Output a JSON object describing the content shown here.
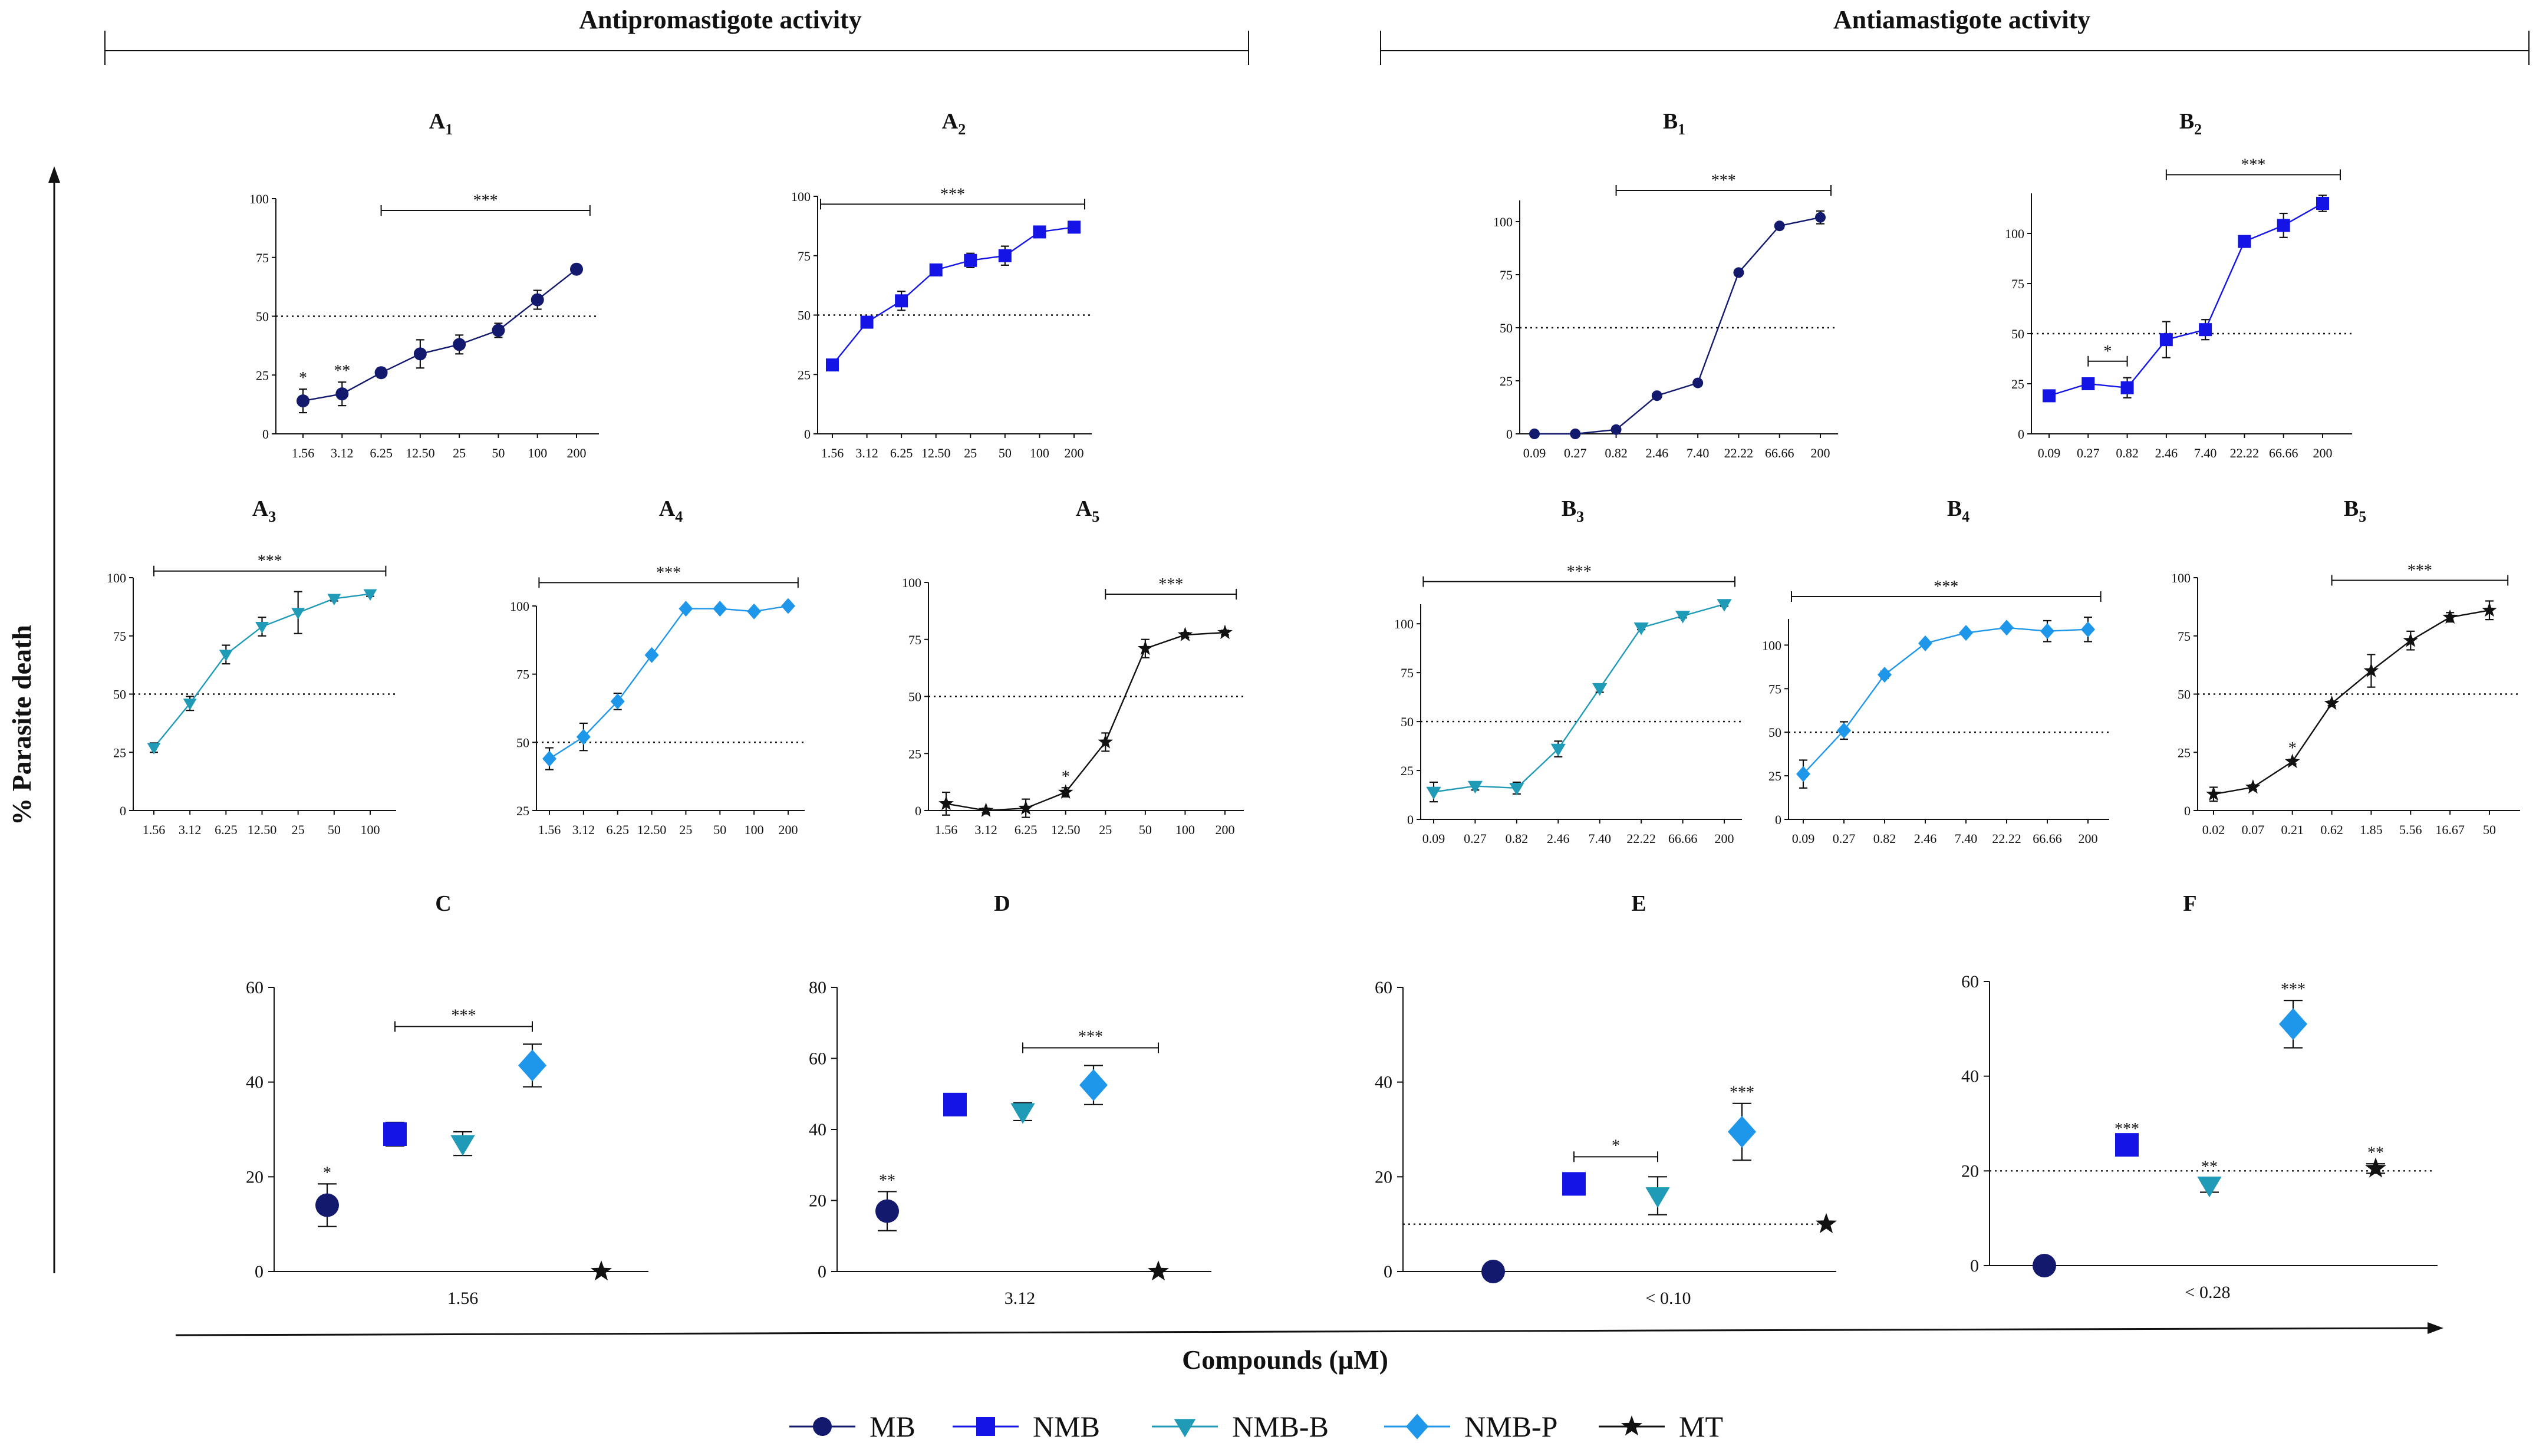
{
  "figure": {
    "sections": [
      {
        "key": "pro",
        "label": "Antipromastigote activity"
      },
      {
        "key": "ama",
        "label": "Antiamastigote activity"
      }
    ],
    "y_axis_label": "% Parasite death",
    "x_axis_label": "Compounds (µM)",
    "legend": [
      {
        "name": "MB",
        "marker": "circle",
        "color": "#131a6e"
      },
      {
        "name": "NMB",
        "marker": "square",
        "color": "#1414e6"
      },
      {
        "name": "NMB-B",
        "marker": "triangle-down",
        "color": "#1f9bb8"
      },
      {
        "name": "NMB-P",
        "marker": "diamond",
        "color": "#1e96ea"
      },
      {
        "name": "MT",
        "marker": "star",
        "color": "#111111"
      }
    ]
  },
  "chart_data": [
    {
      "id": "A1",
      "type": "line",
      "title": "A",
      "subscript": "1",
      "compound": "MB",
      "color": "#131a6e",
      "marker": "circle",
      "categories": [
        "1.56",
        "3.12",
        "6.25",
        "12.50",
        "25",
        "50",
        "100",
        "200"
      ],
      "values": [
        14,
        17,
        26,
        34,
        38,
        44,
        57,
        70
      ],
      "errors": [
        5,
        5,
        2,
        6,
        4,
        3,
        4,
        1
      ],
      "ylim": [
        0,
        100
      ],
      "yticks": [
        0,
        25,
        50,
        75,
        100
      ],
      "reference_line": 50,
      "annotations": [
        {
          "text": "*",
          "at": 0
        },
        {
          "text": "**",
          "at": 1
        },
        {
          "text": "***",
          "from": 2,
          "to": 7
        }
      ]
    },
    {
      "id": "A2",
      "type": "line",
      "title": "A",
      "subscript": "2",
      "compound": "NMB",
      "color": "#1414e6",
      "marker": "square",
      "categories": [
        "1.56",
        "3.12",
        "6.25",
        "12.50",
        "25",
        "50",
        "100",
        "200"
      ],
      "values": [
        29,
        47,
        56,
        69,
        73,
        75,
        85,
        87
      ],
      "errors": [
        2,
        2,
        4,
        2,
        3,
        4,
        1,
        1
      ],
      "ylim": [
        0,
        100
      ],
      "yticks": [
        0,
        25,
        50,
        75,
        100
      ],
      "reference_line": 50,
      "annotations": [
        {
          "text": "***",
          "from": 0,
          "to": 7
        }
      ]
    },
    {
      "id": "A3",
      "type": "line",
      "title": "A",
      "subscript": "3",
      "compound": "NMB-B",
      "color": "#1f9bb8",
      "marker": "triangle-down",
      "categories": [
        "1.56",
        "3.12",
        "6.25",
        "12.50",
        "25",
        "50",
        "100"
      ],
      "values": [
        27,
        46,
        67,
        79,
        85,
        91,
        93
      ],
      "errors": [
        2,
        3,
        4,
        4,
        9,
        1,
        1
      ],
      "ylim": [
        0,
        100
      ],
      "yticks": [
        0,
        25,
        50,
        75,
        100
      ],
      "reference_line": 50,
      "annotations": [
        {
          "text": "***",
          "from": 0,
          "to": 7
        }
      ]
    },
    {
      "id": "A4",
      "type": "line",
      "title": "A",
      "subscript": "4",
      "compound": "NMB-P",
      "color": "#1e96ea",
      "marker": "diamond",
      "categories": [
        "1.56",
        "3.12",
        "6.25",
        "12.50",
        "25",
        "50",
        "100",
        "200"
      ],
      "values": [
        44,
        52,
        65,
        82,
        99,
        99,
        98,
        100
      ],
      "errors": [
        4,
        5,
        3,
        1,
        1,
        1,
        1,
        1
      ],
      "ylim": [
        25,
        100
      ],
      "yticks": [
        25,
        50,
        75,
        100
      ],
      "reference_line": 50,
      "annotations": [
        {
          "text": "***",
          "from": 0,
          "to": 7
        }
      ]
    },
    {
      "id": "A5",
      "type": "line",
      "title": "A",
      "subscript": "5",
      "compound": "MT",
      "color": "#111111",
      "marker": "star",
      "categories": [
        "1.56",
        "3.12",
        "6.25",
        "12.50",
        "25",
        "50",
        "100",
        "200"
      ],
      "values": [
        3,
        0,
        1,
        8,
        30,
        71,
        77,
        78
      ],
      "errors": [
        5,
        1,
        4,
        2,
        4,
        4,
        1,
        1
      ],
      "ylim": [
        0,
        100
      ],
      "yticks": [
        0,
        25,
        50,
        75,
        100
      ],
      "reference_line": 50,
      "annotations": [
        {
          "text": "*",
          "at": 3
        },
        {
          "text": "***",
          "from": 4,
          "to": 7
        }
      ]
    },
    {
      "id": "B1",
      "type": "line",
      "title": "B",
      "subscript": "1",
      "compound": "MB",
      "color": "#131a6e",
      "marker": "circle",
      "categories": [
        "0.09",
        "0.27",
        "0.82",
        "2.46",
        "7.40",
        "22.22",
        "66.66",
        "200"
      ],
      "values": [
        0,
        0,
        2,
        18,
        24,
        76,
        98,
        102
      ],
      "errors": [
        0,
        0,
        1,
        1,
        1,
        1,
        1,
        3
      ],
      "ylim": [
        0,
        110
      ],
      "yticks": [
        0,
        25,
        50,
        75,
        100
      ],
      "reference_line": 50,
      "annotations": [
        {
          "text": "***",
          "from": 2,
          "to": 7
        }
      ]
    },
    {
      "id": "B2",
      "type": "line",
      "title": "B",
      "subscript": "2",
      "compound": "NMB",
      "color": "#1414e6",
      "marker": "square",
      "categories": [
        "0.09",
        "0.27",
        "0.82",
        "2.46",
        "7.40",
        "22.22",
        "66.66",
        "200"
      ],
      "values": [
        19,
        25,
        23,
        47,
        52,
        96,
        104,
        115
      ],
      "errors": [
        1,
        1,
        5,
        9,
        5,
        1,
        6,
        4
      ],
      "ylim": [
        0,
        120
      ],
      "yticks": [
        0,
        25,
        50,
        75,
        100
      ],
      "reference_line": 50,
      "annotations": [
        {
          "text": "*",
          "from": 1,
          "to": 2
        },
        {
          "text": "***",
          "from": 3,
          "to": 7
        }
      ]
    },
    {
      "id": "B3",
      "type": "line",
      "title": "B",
      "subscript": "3",
      "compound": "NMB-B",
      "color": "#1f9bb8",
      "marker": "triangle-down",
      "categories": [
        "0.09",
        "0.27",
        "0.82",
        "2.46",
        "7.40",
        "22.22",
        "66.66",
        "200"
      ],
      "values": [
        14,
        17,
        16,
        36,
        67,
        98,
        104,
        110
      ],
      "errors": [
        5,
        2,
        3,
        4,
        2,
        1,
        1,
        1
      ],
      "ylim": [
        0,
        110
      ],
      "yticks": [
        0,
        25,
        50,
        75,
        100
      ],
      "reference_line": 50,
      "annotations": [
        {
          "text": "***",
          "from": 0,
          "to": 7
        }
      ]
    },
    {
      "id": "B4",
      "type": "line",
      "title": "B",
      "subscript": "4",
      "compound": "NMB-P",
      "color": "#1e96ea",
      "marker": "diamond",
      "categories": [
        "0.09",
        "0.27",
        "0.82",
        "2.46",
        "7.40",
        "22.22",
        "66.66",
        "200"
      ],
      "values": [
        26,
        51,
        83,
        101,
        107,
        110,
        108,
        109
      ],
      "errors": [
        8,
        5,
        2,
        1,
        1,
        1,
        6,
        7
      ],
      "ylim": [
        0,
        115
      ],
      "yticks": [
        0,
        25,
        50,
        75,
        100
      ],
      "reference_line": 50,
      "annotations": [
        {
          "text": "***",
          "from": 0,
          "to": 7
        }
      ]
    },
    {
      "id": "B5",
      "type": "line",
      "title": "B",
      "subscript": "5",
      "compound": "MT",
      "color": "#111111",
      "marker": "star",
      "categories": [
        "0.02",
        "0.07",
        "0.21",
        "0.62",
        "1.85",
        "5.56",
        "16.67",
        "50"
      ],
      "values": [
        7,
        10,
        21,
        46,
        60,
        73,
        83,
        86
      ],
      "errors": [
        3,
        1,
        1,
        1,
        7,
        4,
        2,
        4
      ],
      "ylim": [
        0,
        100
      ],
      "yticks": [
        0,
        25,
        50,
        75,
        100
      ],
      "reference_line": 50,
      "annotations": [
        {
          "text": "*",
          "at": 2
        },
        {
          "text": "***",
          "from": 3,
          "to": 7
        }
      ]
    },
    {
      "id": "C",
      "type": "scatter",
      "title": "C",
      "xlabel": "1.56",
      "ylim": [
        0,
        60
      ],
      "yticks": [
        0,
        20,
        40,
        60
      ],
      "reference_line": null,
      "points": [
        {
          "compound": "MB",
          "value": 14,
          "error": 4.5,
          "sig": "*"
        },
        {
          "compound": "NMB",
          "value": 29,
          "error": 2.5,
          "sig": ""
        },
        {
          "compound": "NMB-B",
          "value": 27,
          "error": 2.5,
          "sig": ""
        },
        {
          "compound": "NMB-P",
          "value": 43.5,
          "error": 4.5,
          "sig": ""
        },
        {
          "compound": "MT",
          "value": 0,
          "error": 0,
          "sig": ""
        }
      ],
      "annotations": [
        {
          "text": "***",
          "from": 1,
          "to": 3
        }
      ]
    },
    {
      "id": "D",
      "type": "scatter",
      "title": "D",
      "xlabel": "3.12",
      "ylim": [
        0,
        80
      ],
      "yticks": [
        0,
        20,
        40,
        60,
        80
      ],
      "reference_line": null,
      "points": [
        {
          "compound": "MB",
          "value": 17,
          "error": 5.5,
          "sig": "**"
        },
        {
          "compound": "NMB",
          "value": 47,
          "error": 1,
          "sig": ""
        },
        {
          "compound": "NMB-B",
          "value": 45,
          "error": 2.5,
          "sig": ""
        },
        {
          "compound": "NMB-P",
          "value": 52.5,
          "error": 5.5,
          "sig": ""
        },
        {
          "compound": "MT",
          "value": 0,
          "error": 0,
          "sig": ""
        }
      ],
      "annotations": [
        {
          "text": "***",
          "from": 2,
          "to": 4
        }
      ]
    },
    {
      "id": "E",
      "type": "scatter",
      "title": "E",
      "xlabel": "< 0.10",
      "ylim": [
        0,
        60
      ],
      "yticks": [
        0,
        20,
        40,
        60
      ],
      "reference_line": 10,
      "points": [
        {
          "compound": "MB",
          "value": 0,
          "error": 0,
          "sig": ""
        },
        {
          "compound": "NMB",
          "value": 18.5,
          "error": 2,
          "sig": ""
        },
        {
          "compound": "NMB-B",
          "value": 16,
          "error": 4,
          "sig": ""
        },
        {
          "compound": "NMB-P",
          "value": 29.5,
          "error": 6,
          "sig": "***"
        },
        {
          "compound": "MT",
          "value": 10,
          "error": 0,
          "sig": ""
        }
      ],
      "annotations": [
        {
          "text": "*",
          "from": 1,
          "to": 2
        }
      ]
    },
    {
      "id": "F",
      "type": "scatter",
      "title": "F",
      "xlabel": "< 0.28",
      "ylim": [
        0,
        60
      ],
      "yticks": [
        0,
        20,
        40,
        60
      ],
      "reference_line": 20,
      "points": [
        {
          "compound": "MB",
          "value": 0,
          "error": 0,
          "sig": ""
        },
        {
          "compound": "NMB",
          "value": 25.5,
          "error": 1,
          "sig": "***"
        },
        {
          "compound": "NMB-B",
          "value": 17,
          "error": 1.5,
          "sig": "**"
        },
        {
          "compound": "NMB-P",
          "value": 51,
          "error": 5,
          "sig": "***"
        },
        {
          "compound": "MT",
          "value": 20.5,
          "error": 1,
          "sig": "**"
        }
      ],
      "annotations": []
    }
  ]
}
